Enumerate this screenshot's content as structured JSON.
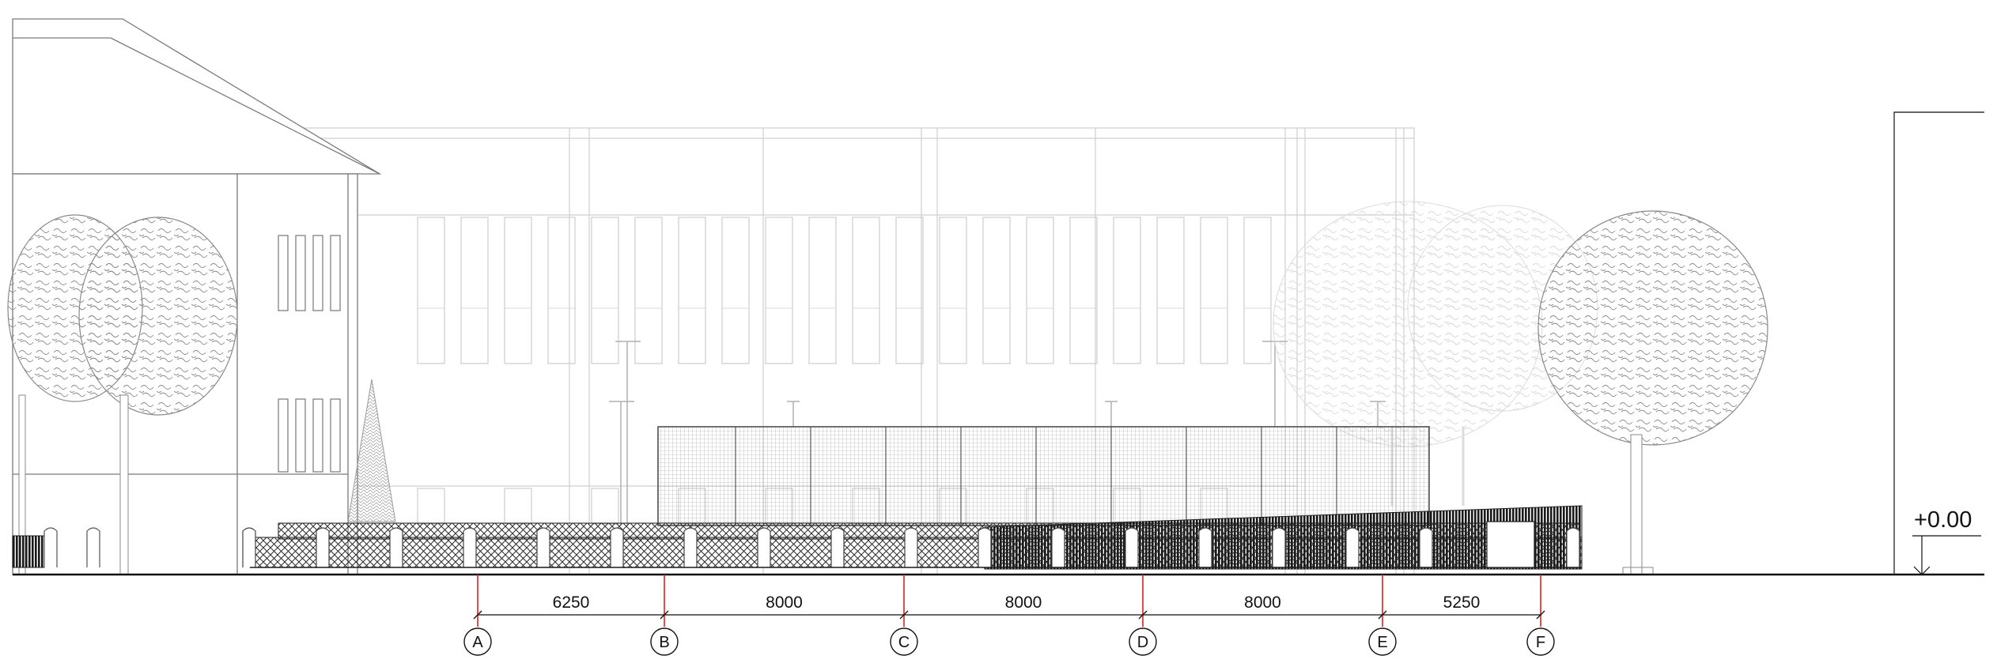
{
  "drawing": {
    "grid_lines": [
      {
        "label": "A"
      },
      {
        "label": "B"
      },
      {
        "label": "C"
      },
      {
        "label": "D"
      },
      {
        "label": "E"
      },
      {
        "label": "F"
      }
    ],
    "dimensions": [
      "6250",
      "8000",
      "8000",
      "8000",
      "5250"
    ],
    "level": "+0.00"
  },
  "colors": {
    "grid_line": "#e02020",
    "ink": "#1a1a1a",
    "faint": "#c9c9c9",
    "tree": "#9a9a9a",
    "faint_tree": "#d6d6d6"
  }
}
